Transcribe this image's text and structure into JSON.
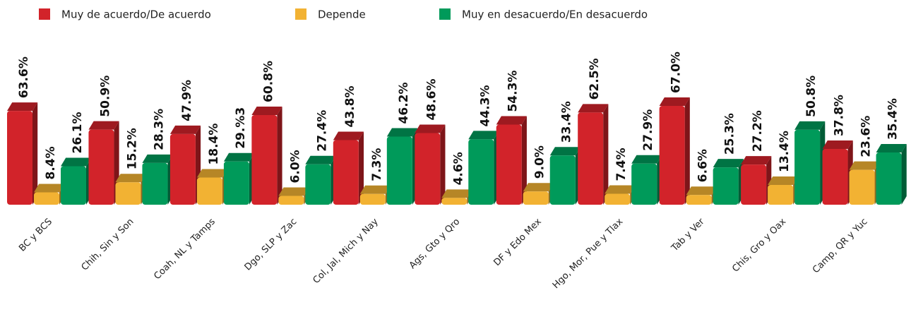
{
  "chart_data": {
    "type": "bar3d",
    "categories": [
      "BC y BCS",
      "Chih, Sin y Son",
      "Coah, NL y Tamps",
      "Dgo, SLP y Zac",
      "Col, Jal, Mich y Nay",
      "Ags, Gto y Qro",
      "DF y Edo Mex",
      "Hgo, Mor, Pue y Tlax",
      "Tab y Ver",
      "Chis, Gro y Oax",
      "Camp, QR y Yuc"
    ],
    "series": [
      {
        "name": "Muy de acuerdo/De acuerdo",
        "color": "#d2232a",
        "values": [
          63.6,
          50.9,
          47.9,
          60.8,
          43.8,
          48.6,
          54.3,
          62.5,
          67.0,
          27.2,
          37.8
        ],
        "value_labels": [
          "63.6%",
          "50.9%",
          "47.9%",
          "60.8%",
          "43.8%",
          "48.6%",
          "54.3%",
          "62.5%",
          "67.0%",
          "27.2%",
          "37.8%"
        ]
      },
      {
        "name": "Depende",
        "color": "#f2b233",
        "values": [
          8.4,
          15.2,
          18.4,
          6.0,
          7.3,
          4.6,
          9.0,
          7.4,
          6.6,
          13.4,
          23.6
        ],
        "value_labels": [
          "8.4%",
          "15.2%",
          "18.4%",
          "6.0%",
          "7.3%",
          "4.6%",
          "9.0%",
          "7.4%",
          "6.6%",
          "13.4%",
          "23.6%"
        ]
      },
      {
        "name": "Muy en desacuerdo/En desacuerdo",
        "color": "#009a5a",
        "values": [
          26.1,
          28.3,
          29.3,
          27.4,
          46.2,
          44.3,
          33.4,
          27.9,
          25.3,
          50.8,
          35.4
        ],
        "value_labels": [
          "26.1%",
          "28.3%",
          "29.%3",
          "27.4%",
          "46.2%",
          "44.3%",
          "33.4%",
          "27.9%",
          "25.3%",
          "50.8%",
          "35.4%"
        ]
      }
    ]
  }
}
